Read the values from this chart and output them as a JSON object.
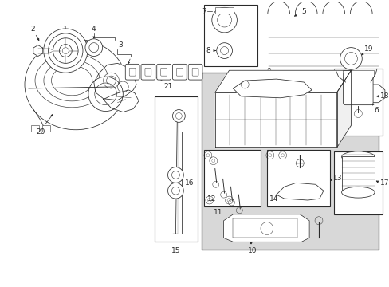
{
  "bg_color": "#ffffff",
  "line_color": "#2a2a2a",
  "gray_bg": "#d8d8d8",
  "fig_width": 4.89,
  "fig_height": 3.6,
  "dpi": 100
}
